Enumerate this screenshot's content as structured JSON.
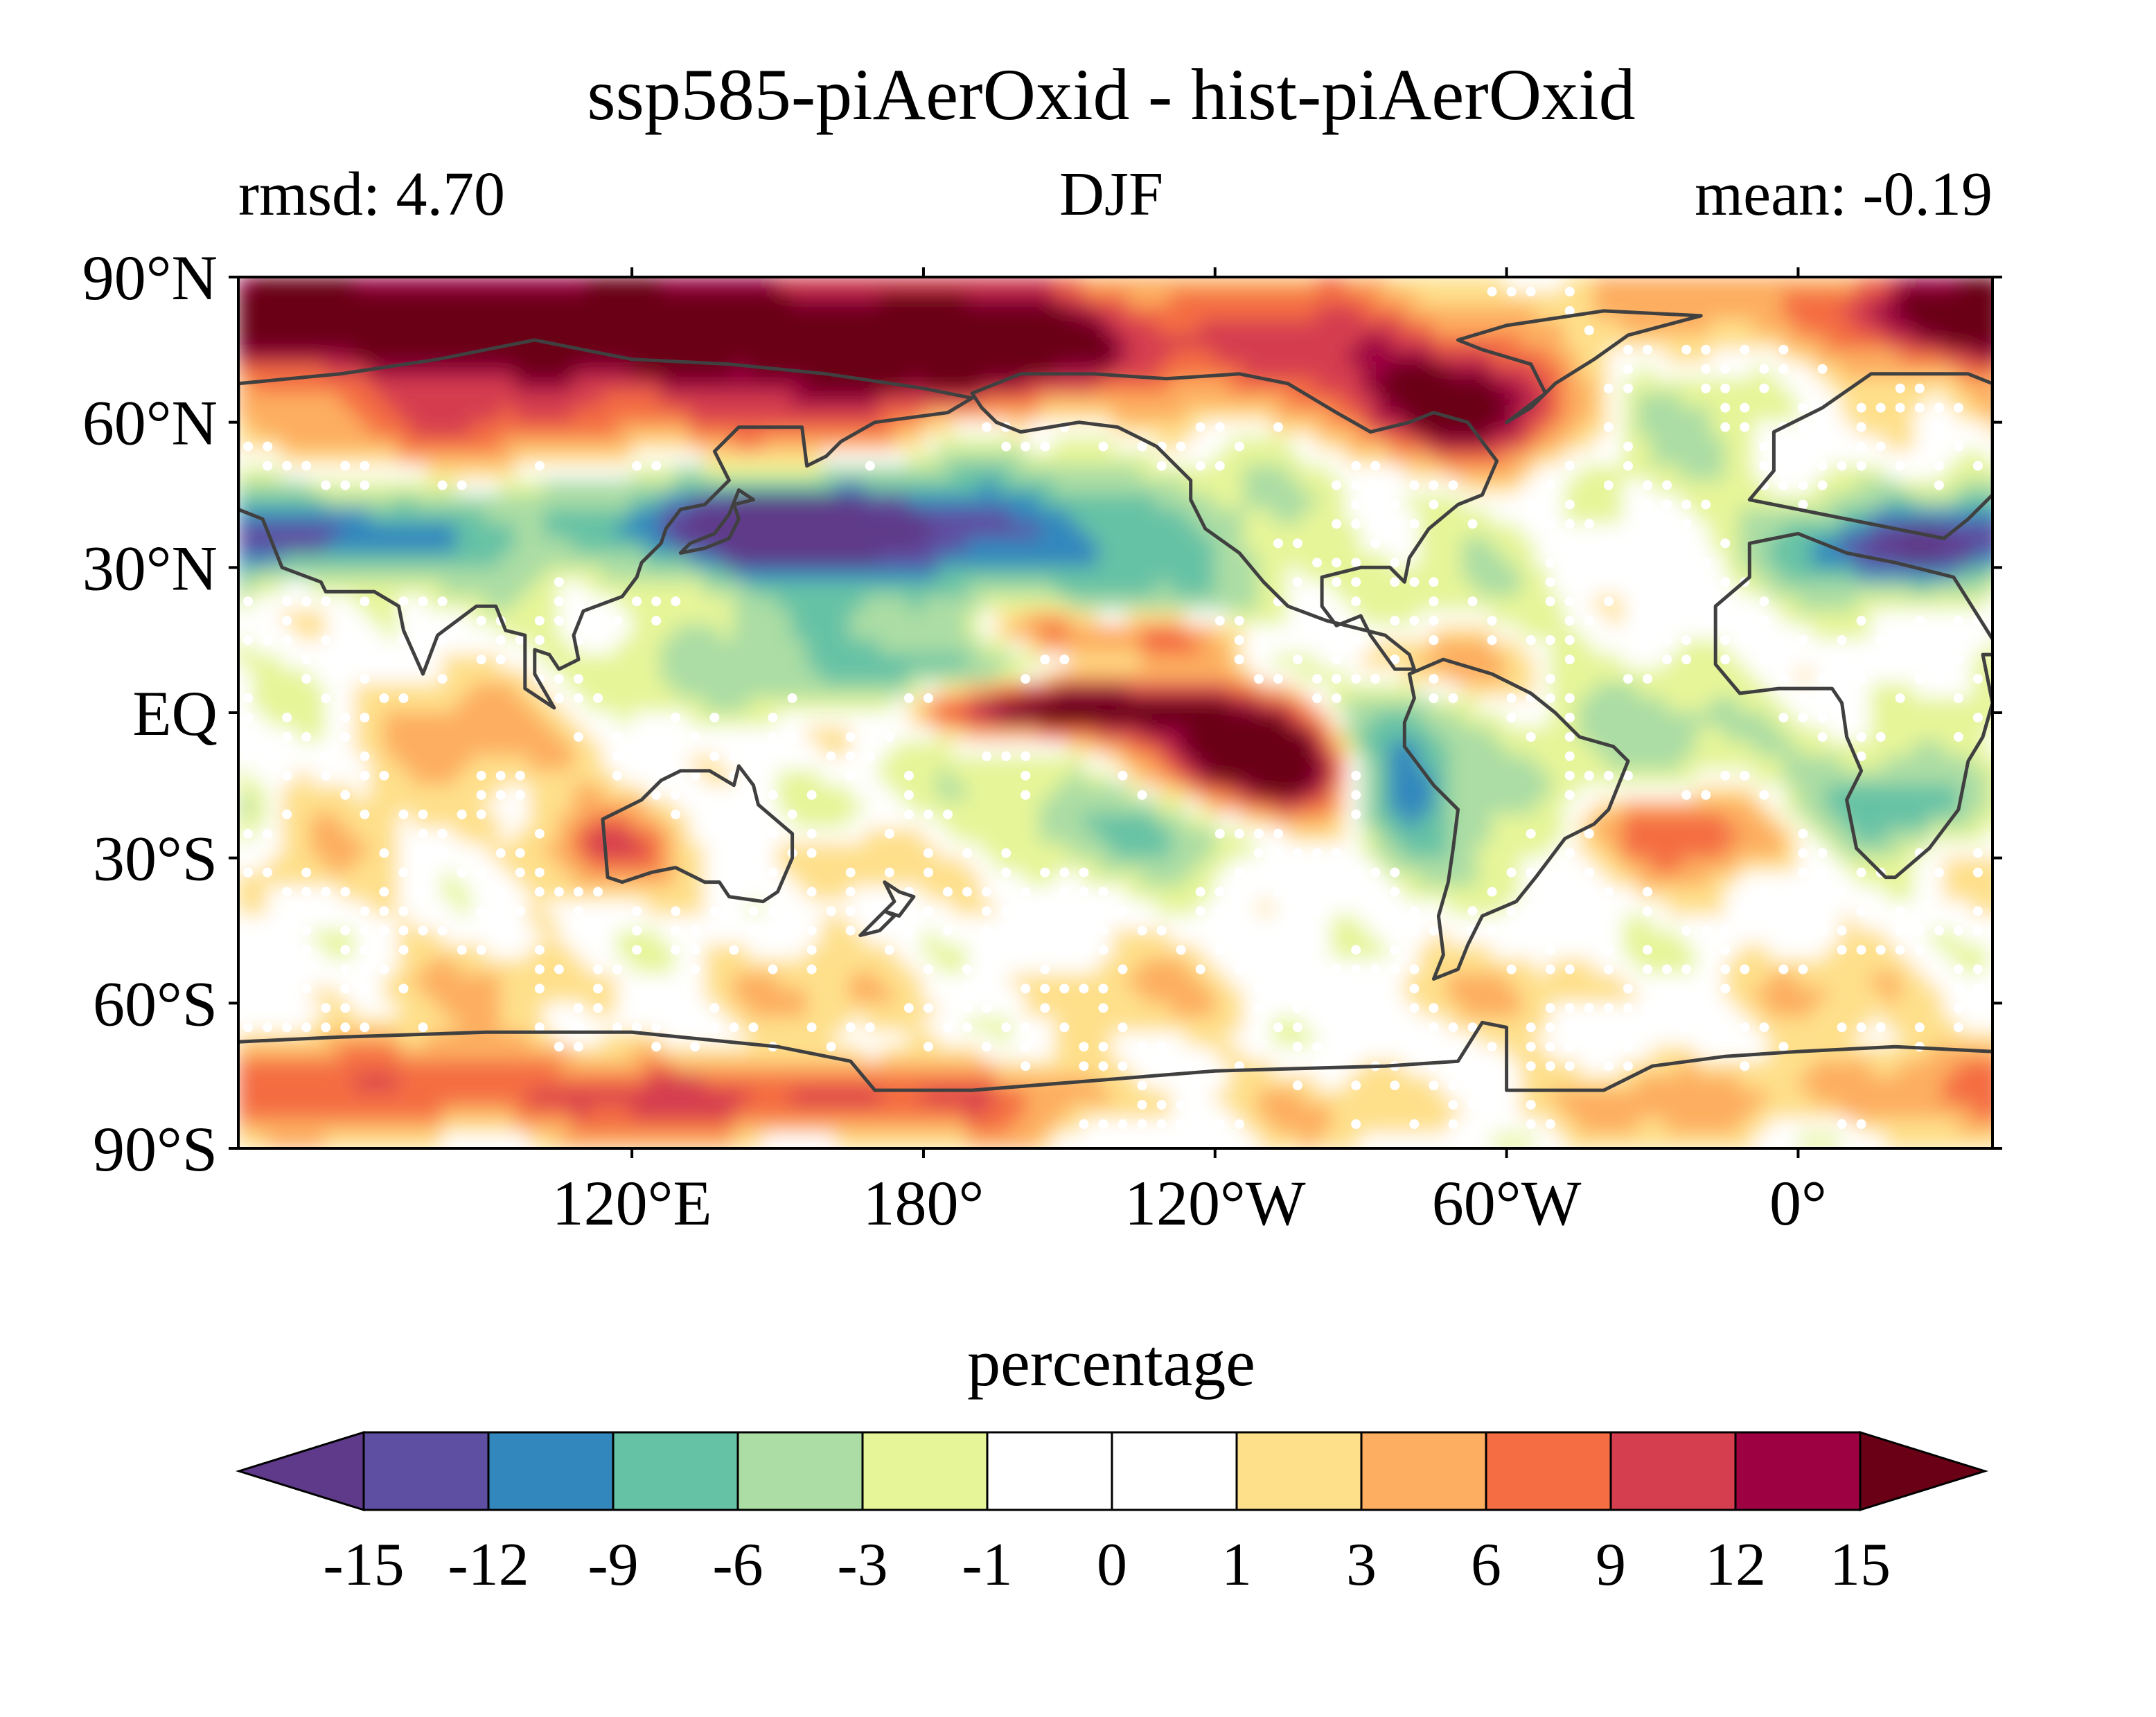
{
  "title": "ssp585-piAerOxid - hist-piAerOxid",
  "stats": {
    "left": "rmsd: 4.70",
    "center": "DJF",
    "right": "mean: -0.19"
  },
  "map": {
    "lat_ticks": [
      {
        "value": 90,
        "label": "90°N"
      },
      {
        "value": 60,
        "label": "60°N"
      },
      {
        "value": 30,
        "label": "30°N"
      },
      {
        "value": 0,
        "label": "EQ"
      },
      {
        "value": -30,
        "label": "30°S"
      },
      {
        "value": -60,
        "label": "60°S"
      },
      {
        "value": -90,
        "label": "90°S"
      }
    ],
    "lon_ticks": [
      {
        "value": 120,
        "label": "120°E"
      },
      {
        "value": 180,
        "label": "180°"
      },
      {
        "value": 240,
        "label": "120°W"
      },
      {
        "value": 300,
        "label": "60°W"
      },
      {
        "value": 360,
        "label": "0°"
      }
    ],
    "lon_range": [
      39,
      400
    ],
    "lat_range": [
      -90,
      90
    ],
    "coastline_color": "#404040",
    "stipple_color": "#ffffff"
  },
  "colorbar": {
    "label": "percentage",
    "levels": [
      -15,
      -12,
      -9,
      -6,
      -3,
      -1,
      0,
      1,
      3,
      6,
      9,
      12,
      15
    ],
    "tick_labels": [
      "-15",
      "-12",
      "-9",
      "-6",
      "-3",
      "-1",
      "0",
      "1",
      "3",
      "6",
      "9",
      "12",
      "15"
    ],
    "colors": [
      "#5e4fa2",
      "#3288bd",
      "#66c2a5",
      "#abdda4",
      "#e6f598",
      "#ffffff",
      "#ffffff",
      "#fee08b",
      "#fdae61",
      "#f46d43",
      "#d53e4f",
      "#9e0142"
    ],
    "under_color": "#5f3a8a",
    "over_color": "#6a0015"
  }
}
